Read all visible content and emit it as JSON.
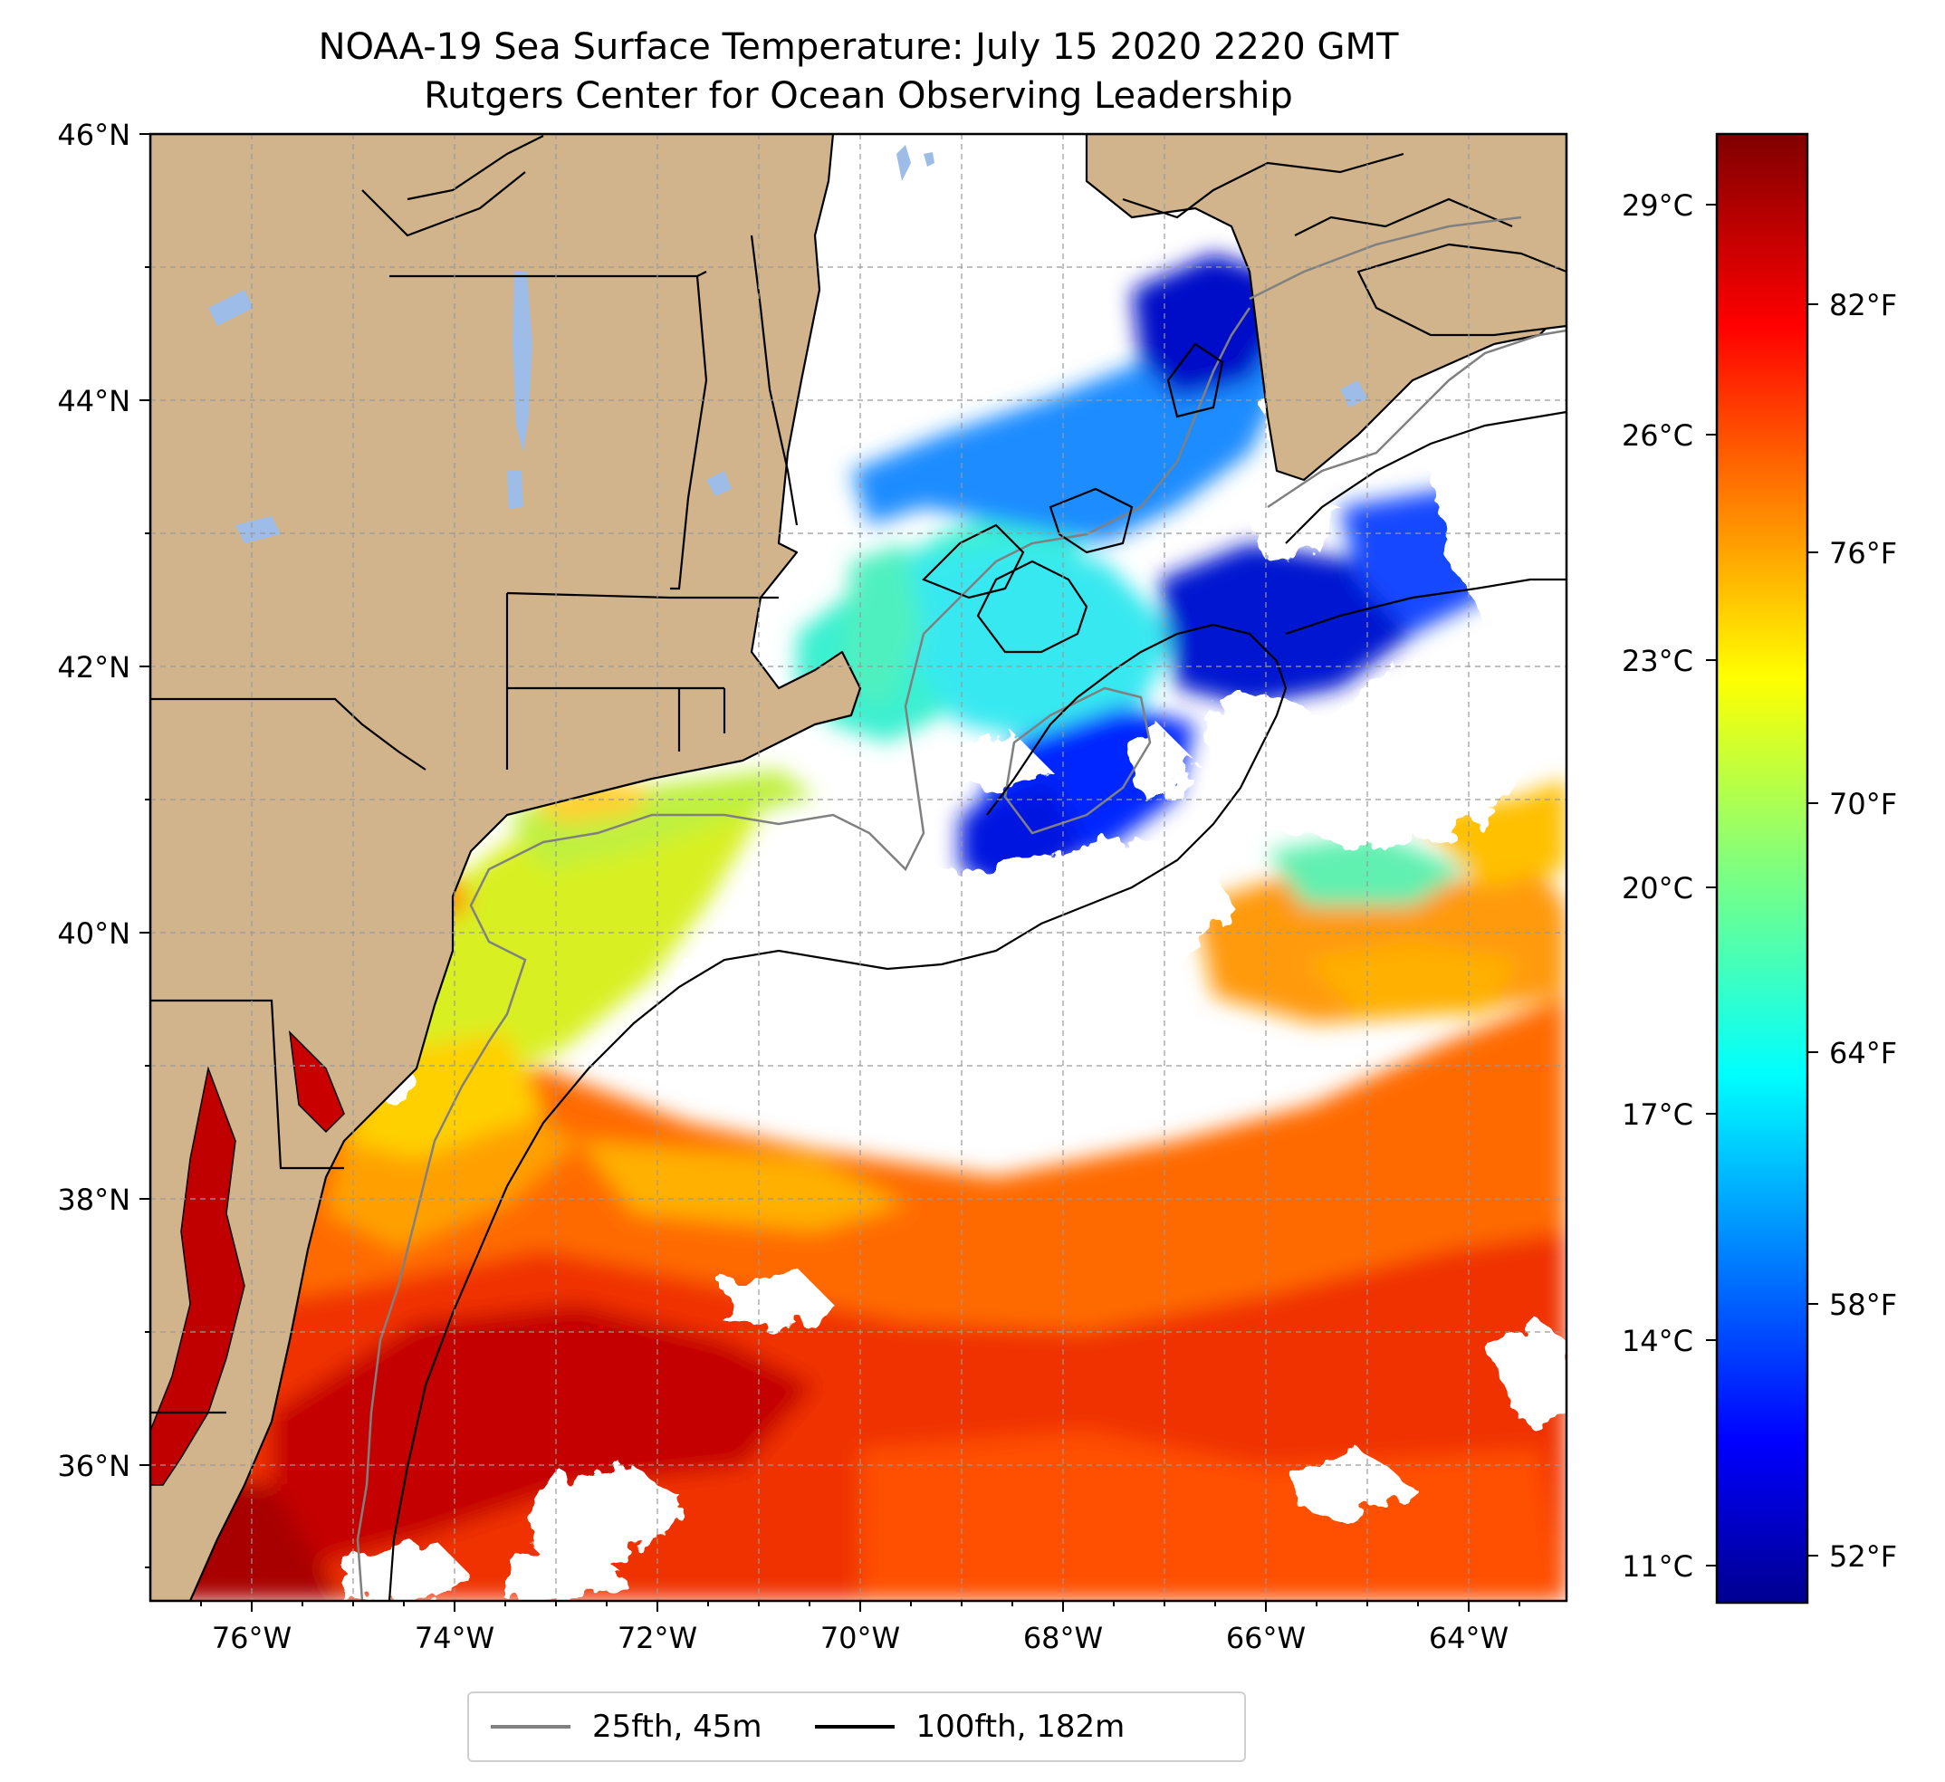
{
  "title": {
    "line1": "NOAA-19 Sea Surface Temperature: July 15 2020 2220 GMT",
    "line2": "Rutgers Center for Ocean Observing Leadership"
  },
  "map": {
    "extent_lon": [
      -77.0,
      -63.0
    ],
    "extent_lat": [
      35.0,
      46.0
    ],
    "lat_ticks": [
      "46°N",
      "44°N",
      "42°N",
      "40°N",
      "38°N",
      "36°N"
    ],
    "lon_ticks": [
      "76°W",
      "74°W",
      "72°W",
      "70°W",
      "68°W",
      "66°W",
      "64°W"
    ],
    "land_color": "#d2b48c",
    "lake_color": "#9dbde8",
    "cloud_color": "#ffffff"
  },
  "colorbar": {
    "celsius_ticks": [
      "29°C",
      "26°C",
      "23°C",
      "20°C",
      "17°C",
      "14°C",
      "11°C"
    ],
    "fahrenheit_ticks": [
      "82°F",
      "76°F",
      "70°F",
      "64°F",
      "58°F",
      "52°F"
    ],
    "colormap": "jet",
    "range_f": [
      50.5,
      85.5
    ]
  },
  "legend": {
    "items": [
      {
        "label": "25fth, 45m",
        "color": "#808080"
      },
      {
        "label": "100fth, 182m",
        "color": "#000000"
      }
    ]
  }
}
